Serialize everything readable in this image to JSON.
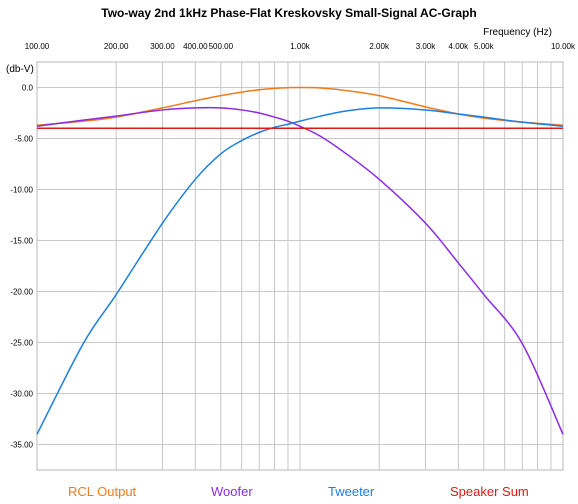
{
  "chart_data": {
    "type": "line",
    "title": "Two-way 2nd 1kHz Phase-Flat Kreskovsky Small-Signal AC-Graph",
    "xlabel": "Frequency  (Hz)",
    "ylabel": "(db-V)",
    "xscale": "log",
    "xlim": [
      100,
      10000
    ],
    "ylim": [
      -37.5,
      2.5
    ],
    "grid": true,
    "legend_position": "bottom",
    "x_ticks": [
      {
        "value": 100,
        "label": "100.00"
      },
      {
        "value": 200,
        "label": "200.00"
      },
      {
        "value": 300,
        "label": "300.00"
      },
      {
        "value": 400,
        "label": "400.00"
      },
      {
        "value": 500,
        "label": "500.00"
      },
      {
        "value": 1000,
        "label": "1.00k"
      },
      {
        "value": 2000,
        "label": "2.00k"
      },
      {
        "value": 3000,
        "label": "3.00k"
      },
      {
        "value": 4000,
        "label": "4.00k"
      },
      {
        "value": 5000,
        "label": "5.00k"
      },
      {
        "value": 10000,
        "label": "10.00k"
      }
    ],
    "y_ticks": [
      {
        "value": 0,
        "label": "0.0"
      },
      {
        "value": -5,
        "label": "-5.00"
      },
      {
        "value": -10,
        "label": "-10.00"
      },
      {
        "value": -15,
        "label": "-15.00"
      },
      {
        "value": -20,
        "label": "-20.00"
      },
      {
        "value": -25,
        "label": "-25.00"
      },
      {
        "value": -30,
        "label": "-30.00"
      },
      {
        "value": -35,
        "label": "-35.00"
      }
    ],
    "x": [
      100,
      150,
      200,
      300,
      400,
      500,
      600,
      700,
      800,
      900,
      1000,
      1200,
      1500,
      2000,
      3000,
      4000,
      5000,
      7000,
      10000
    ],
    "series": [
      {
        "name": "RCL Output",
        "color": "#f07b1c",
        "values": [
          -3.7,
          -3.3,
          -2.9,
          -2.0,
          -1.3,
          -0.8,
          -0.45,
          -0.22,
          -0.08,
          -0.02,
          0.0,
          -0.05,
          -0.3,
          -0.8,
          -1.9,
          -2.6,
          -3.0,
          -3.4,
          -3.7
        ]
      },
      {
        "name": "Woofer",
        "color": "#8a2be2",
        "values": [
          -3.8,
          -3.2,
          -2.8,
          -2.2,
          -2.0,
          -2.0,
          -2.2,
          -2.5,
          -2.9,
          -3.3,
          -3.8,
          -4.8,
          -6.5,
          -9.0,
          -13.3,
          -17.2,
          -20.3,
          -25.1,
          -34.0
        ]
      },
      {
        "name": "Tweeter",
        "color": "#1c7ee0",
        "values": [
          -34.0,
          -25.1,
          -20.3,
          -13.3,
          -9.0,
          -6.5,
          -5.2,
          -4.4,
          -3.9,
          -3.6,
          -3.3,
          -2.8,
          -2.3,
          -2.0,
          -2.2,
          -2.6,
          -2.9,
          -3.4,
          -3.8
        ]
      },
      {
        "name": "Speaker Sum",
        "color": "#e01818",
        "values": [
          -4.0,
          -4.0,
          -4.0,
          -4.0,
          -4.0,
          -4.0,
          -4.0,
          -4.0,
          -4.0,
          -4.0,
          -4.0,
          -4.0,
          -4.0,
          -4.0,
          -4.0,
          -4.0,
          -4.0,
          -4.0,
          -4.0
        ]
      }
    ]
  }
}
